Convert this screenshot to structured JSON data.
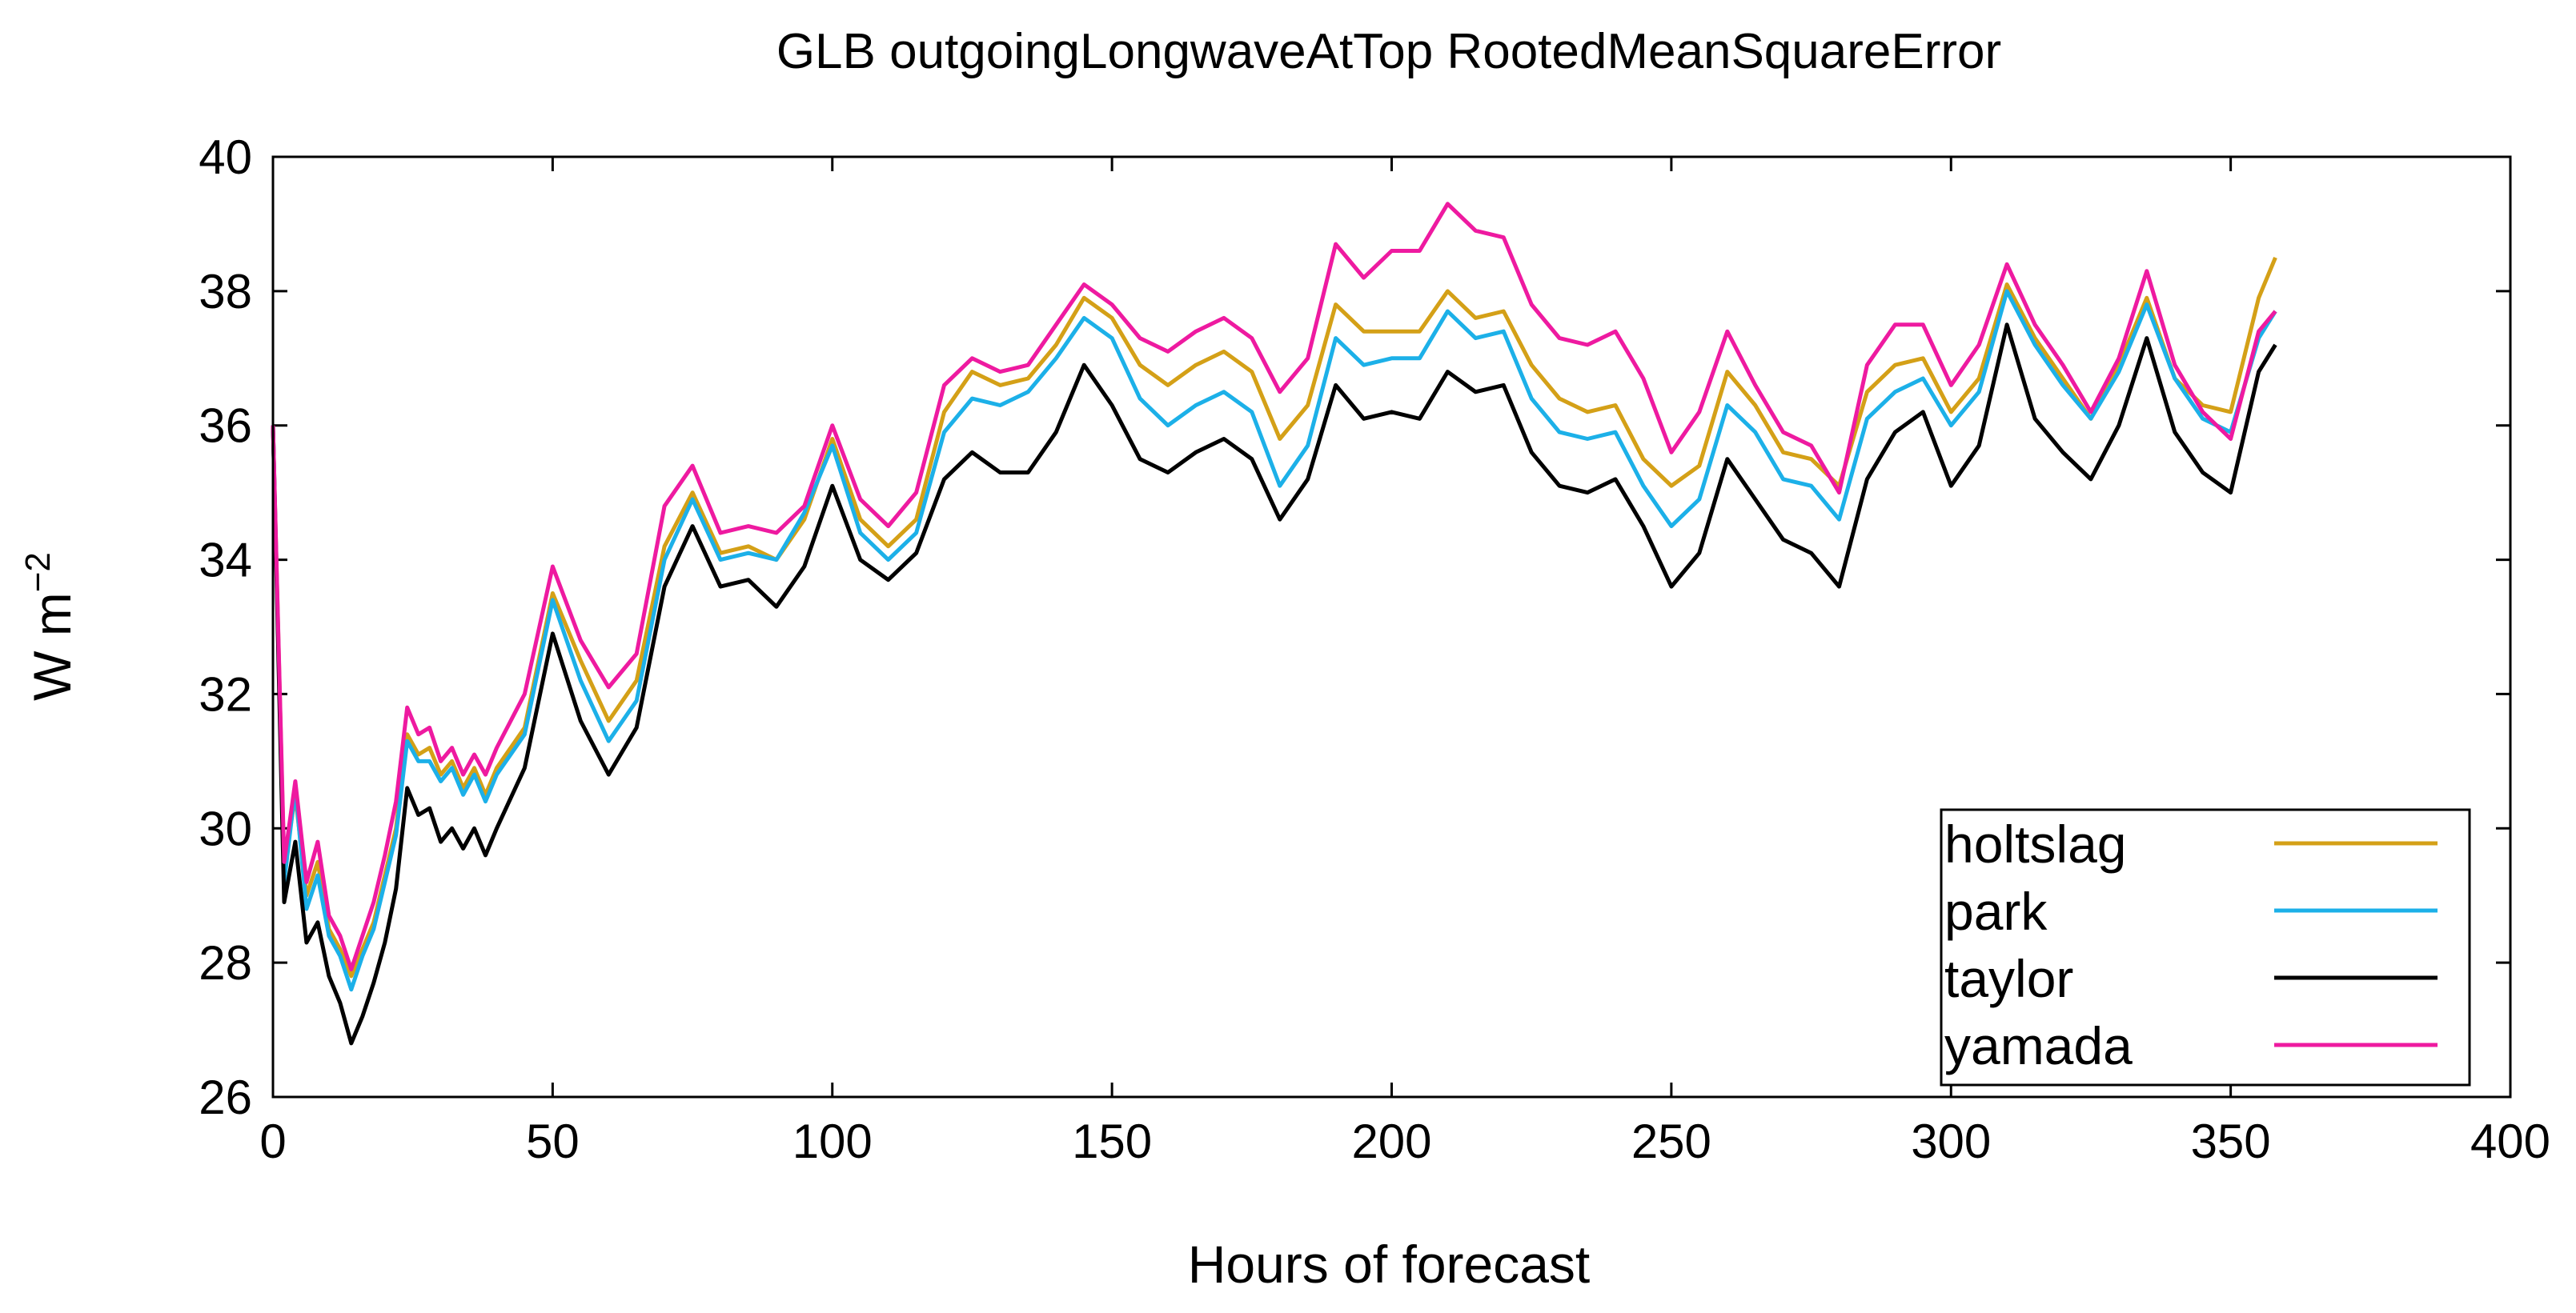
{
  "chart_data": {
    "type": "line",
    "title": "GLB outgoingLongwaveAtTop RootedMeanSquareError",
    "xlabel": "Hours of forecast",
    "ylabel_main": "W m",
    "ylabel_sup": "−2",
    "xlim": [
      0,
      400
    ],
    "ylim": [
      26,
      40
    ],
    "xticks": [
      0,
      50,
      100,
      150,
      200,
      250,
      300,
      350,
      400
    ],
    "yticks": [
      26,
      28,
      30,
      32,
      34,
      36,
      38,
      40
    ],
    "legend_position": "bottom-right",
    "x": [
      0,
      2,
      4,
      6,
      8,
      10,
      12,
      14,
      16,
      18,
      20,
      22,
      24,
      26,
      28,
      30,
      32,
      34,
      36,
      38,
      40,
      45,
      50,
      55,
      60,
      65,
      70,
      75,
      80,
      85,
      90,
      95,
      100,
      105,
      110,
      115,
      120,
      125,
      130,
      135,
      140,
      145,
      150,
      155,
      160,
      165,
      170,
      175,
      180,
      185,
      190,
      195,
      200,
      205,
      210,
      215,
      220,
      225,
      230,
      235,
      240,
      245,
      250,
      255,
      260,
      265,
      270,
      275,
      280,
      285,
      290,
      295,
      300,
      305,
      310,
      315,
      320,
      325,
      330,
      335,
      340,
      345,
      350,
      355,
      358
    ],
    "series": [
      {
        "name": "holtslag",
        "color": "#d4a017",
        "values": [
          36.0,
          29.4,
          30.5,
          29.0,
          29.5,
          28.5,
          28.2,
          27.8,
          28.2,
          28.6,
          29.3,
          30.0,
          31.4,
          31.1,
          31.2,
          30.8,
          31.0,
          30.6,
          30.9,
          30.5,
          30.9,
          31.5,
          33.5,
          32.5,
          31.6,
          32.2,
          34.2,
          35.0,
          34.1,
          34.2,
          34.0,
          34.6,
          35.8,
          34.6,
          34.2,
          34.6,
          36.2,
          36.8,
          36.6,
          36.7,
          37.2,
          37.9,
          37.6,
          36.9,
          36.6,
          36.9,
          37.1,
          36.8,
          35.8,
          36.3,
          37.8,
          37.4,
          37.4,
          37.4,
          38.0,
          37.6,
          37.7,
          36.9,
          36.4,
          36.2,
          36.3,
          35.5,
          35.1,
          35.4,
          36.8,
          36.3,
          35.6,
          35.5,
          35.1,
          36.5,
          36.9,
          37.0,
          36.2,
          36.7,
          38.1,
          37.3,
          36.7,
          36.1,
          36.9,
          37.9,
          36.7,
          36.3,
          36.2,
          37.9,
          38.5
        ]
      },
      {
        "name": "park",
        "color": "#1cb0e8",
        "values": [
          36.0,
          29.2,
          30.6,
          28.8,
          29.3,
          28.4,
          28.1,
          27.6,
          28.1,
          28.5,
          29.2,
          29.9,
          31.3,
          31.0,
          31.0,
          30.7,
          30.9,
          30.5,
          30.8,
          30.4,
          30.8,
          31.4,
          33.4,
          32.2,
          31.3,
          31.9,
          34.0,
          34.9,
          34.0,
          34.1,
          34.0,
          34.7,
          35.7,
          34.4,
          34.0,
          34.4,
          35.9,
          36.4,
          36.3,
          36.5,
          37.0,
          37.6,
          37.3,
          36.4,
          36.0,
          36.3,
          36.5,
          36.2,
          35.1,
          35.7,
          37.3,
          36.9,
          37.0,
          37.0,
          37.7,
          37.3,
          37.4,
          36.4,
          35.9,
          35.8,
          35.9,
          35.1,
          34.5,
          34.9,
          36.3,
          35.9,
          35.2,
          35.1,
          34.6,
          36.1,
          36.5,
          36.7,
          36.0,
          36.5,
          38.0,
          37.2,
          36.6,
          36.1,
          36.8,
          37.8,
          36.7,
          36.1,
          35.9,
          37.3,
          37.7
        ]
      },
      {
        "name": "taylor",
        "color": "#000000",
        "values": [
          36.0,
          28.9,
          29.8,
          28.3,
          28.6,
          27.8,
          27.4,
          26.8,
          27.2,
          27.7,
          28.3,
          29.1,
          30.6,
          30.2,
          30.3,
          29.8,
          30.0,
          29.7,
          30.0,
          29.6,
          30.0,
          30.9,
          32.9,
          31.6,
          30.8,
          31.5,
          33.6,
          34.5,
          33.6,
          33.7,
          33.3,
          33.9,
          35.1,
          34.0,
          33.7,
          34.1,
          35.2,
          35.6,
          35.3,
          35.3,
          35.9,
          36.9,
          36.3,
          35.5,
          35.3,
          35.6,
          35.8,
          35.5,
          34.6,
          35.2,
          36.6,
          36.1,
          36.2,
          36.1,
          36.8,
          36.5,
          36.6,
          35.6,
          35.1,
          35.0,
          35.2,
          34.5,
          33.6,
          34.1,
          35.5,
          34.9,
          34.3,
          34.1,
          33.6,
          35.2,
          35.9,
          36.2,
          35.1,
          35.7,
          37.5,
          36.1,
          35.6,
          35.2,
          36.0,
          37.3,
          35.9,
          35.3,
          35.0,
          36.8,
          37.2
        ]
      },
      {
        "name": "yamada",
        "color": "#ee1aa0",
        "values": [
          36.0,
          29.5,
          30.7,
          29.2,
          29.8,
          28.7,
          28.4,
          27.9,
          28.4,
          28.9,
          29.6,
          30.4,
          31.8,
          31.4,
          31.5,
          31.0,
          31.2,
          30.8,
          31.1,
          30.8,
          31.2,
          32.0,
          33.9,
          32.8,
          32.1,
          32.6,
          34.8,
          35.4,
          34.4,
          34.5,
          34.4,
          34.8,
          36.0,
          34.9,
          34.5,
          35.0,
          36.6,
          37.0,
          36.8,
          36.9,
          37.5,
          38.1,
          37.8,
          37.3,
          37.1,
          37.4,
          37.6,
          37.3,
          36.5,
          37.0,
          38.7,
          38.2,
          38.6,
          38.6,
          39.3,
          38.9,
          38.8,
          37.8,
          37.3,
          37.2,
          37.4,
          36.7,
          35.6,
          36.2,
          37.4,
          36.6,
          35.9,
          35.7,
          35.0,
          36.9,
          37.5,
          37.5,
          36.6,
          37.2,
          38.4,
          37.5,
          36.9,
          36.2,
          37.0,
          38.3,
          36.9,
          36.2,
          35.8,
          37.4,
          37.7
        ]
      }
    ]
  }
}
